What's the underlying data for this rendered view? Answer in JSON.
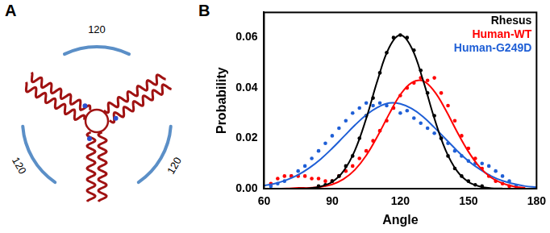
{
  "panel_a": {
    "label": "A",
    "angles": [
      120,
      120,
      120
    ]
  },
  "chart_data": {
    "type": "scatter",
    "panel_label": "B",
    "x_label": "Angle",
    "y_label": "Probability",
    "xlim": [
      60,
      180
    ],
    "xticks": [
      60,
      90,
      120,
      150,
      180
    ],
    "ylim": [
      0,
      0.07
    ],
    "yticks": [
      {
        "value": 0,
        "label": "0.00"
      },
      {
        "value": 0.02,
        "label": "0.02"
      },
      {
        "value": 0.04,
        "label": "0.04"
      },
      {
        "value": 0.06,
        "label": "0.06"
      }
    ],
    "grid": false,
    "legend": "top-right",
    "series": [
      {
        "name": "Rhesus",
        "color": "#000000",
        "marker": "circle",
        "x": [
          84,
          87,
          90,
          93,
          96,
          99,
          102,
          105,
          108,
          111,
          114,
          117,
          120,
          123,
          126,
          129,
          132,
          135,
          138,
          141,
          144,
          147,
          150,
          153,
          156
        ],
        "values": [
          0.001,
          0.0015,
          0.003,
          0.005,
          0.009,
          0.013,
          0.02,
          0.029,
          0.036,
          0.046,
          0.054,
          0.06,
          0.061,
          0.06,
          0.055,
          0.047,
          0.038,
          0.029,
          0.02,
          0.013,
          0.008,
          0.005,
          0.003,
          0.0015,
          0.001
        ]
      },
      {
        "name": "Human-WT",
        "color": "#ff0000",
        "marker": "circle",
        "x": [
          63,
          66,
          69,
          72,
          75,
          78,
          81,
          84,
          87,
          90,
          93,
          96,
          99,
          102,
          105,
          108,
          111,
          114,
          117,
          120,
          123,
          126,
          129,
          132,
          135,
          138,
          141,
          144,
          147,
          150,
          153,
          156,
          159,
          162,
          165,
          168,
          171
        ],
        "values": [
          0.002,
          0.004,
          0.005,
          0.005,
          0.005,
          0.005,
          0.004,
          0.004,
          0.003,
          0.003,
          0.005,
          0.007,
          0.009,
          0.012,
          0.015,
          0.019,
          0.023,
          0.027,
          0.032,
          0.037,
          0.04,
          0.042,
          0.044,
          0.043,
          0.044,
          0.038,
          0.033,
          0.027,
          0.021,
          0.016,
          0.012,
          0.008,
          0.005,
          0.003,
          0.002,
          0.001,
          0.0
        ]
      },
      {
        "name": "Human-G249D",
        "color": "#1f5fd6",
        "marker": "circle",
        "x": [
          63,
          66,
          69,
          72,
          75,
          78,
          81,
          84,
          87,
          90,
          93,
          96,
          99,
          102,
          105,
          108,
          111,
          114,
          117,
          120,
          123,
          126,
          129,
          132,
          135,
          138,
          141,
          144,
          147,
          150,
          153,
          156,
          159,
          162,
          165,
          168,
          171,
          174
        ],
        "values": [
          0.001,
          0.002,
          0.003,
          0.005,
          0.007,
          0.009,
          0.012,
          0.015,
          0.018,
          0.021,
          0.024,
          0.027,
          0.03,
          0.032,
          0.034,
          0.033,
          0.034,
          0.033,
          0.032,
          0.03,
          0.031,
          0.028,
          0.026,
          0.024,
          0.022,
          0.02,
          0.018,
          0.015,
          0.013,
          0.011,
          0.01,
          0.01,
          0.009,
          0.007,
          0.005,
          0.003,
          0.001,
          0.0
        ]
      },
      {
        "type": "line",
        "color": "#000000",
        "line_style": "solid",
        "x": [
          75,
          80,
          85,
          90,
          95,
          100,
          105,
          110,
          115,
          120,
          125,
          130,
          135,
          140,
          145,
          150,
          155,
          160,
          165
        ],
        "values": [
          0.0001,
          0.0002,
          0.0009,
          0.0027,
          0.007,
          0.0152,
          0.0279,
          0.0431,
          0.0559,
          0.061,
          0.0559,
          0.0431,
          0.0279,
          0.0152,
          0.007,
          0.0027,
          0.0009,
          0.0002,
          0.0001
        ]
      },
      {
        "type": "line",
        "color": "#ff0000",
        "line_style": "solid",
        "x": [
          60,
          65,
          70,
          75,
          80,
          85,
          90,
          95,
          100,
          105,
          110,
          115,
          120,
          125,
          130,
          135,
          140,
          145,
          150,
          155,
          160,
          165,
          170,
          175
        ],
        "values": [
          0.0,
          0.0,
          0.0001,
          0.0003,
          0.0003,
          0.0007,
          0.0017,
          0.0038,
          0.0075,
          0.0132,
          0.0209,
          0.0295,
          0.0373,
          0.0421,
          0.0428,
          0.0386,
          0.0312,
          0.0226,
          0.0147,
          0.0085,
          0.0044,
          0.0021,
          0.0009,
          0.0003
        ]
      },
      {
        "type": "line",
        "color": "#1f5fd6",
        "line_style": "solid",
        "x": [
          60,
          65,
          70,
          75,
          80,
          85,
          90,
          95,
          100,
          105,
          110,
          115,
          120,
          125,
          130,
          135,
          140,
          145,
          150,
          155,
          160,
          165,
          170,
          175,
          180
        ],
        "values": [
          0.0012,
          0.0021,
          0.0035,
          0.0055,
          0.0083,
          0.0118,
          0.016,
          0.0206,
          0.0252,
          0.0293,
          0.0323,
          0.034,
          0.0337,
          0.0318,
          0.0286,
          0.0243,
          0.0197,
          0.0151,
          0.011,
          0.0077,
          0.005,
          0.0031,
          0.0019,
          0.001,
          0.0006
        ]
      }
    ]
  }
}
